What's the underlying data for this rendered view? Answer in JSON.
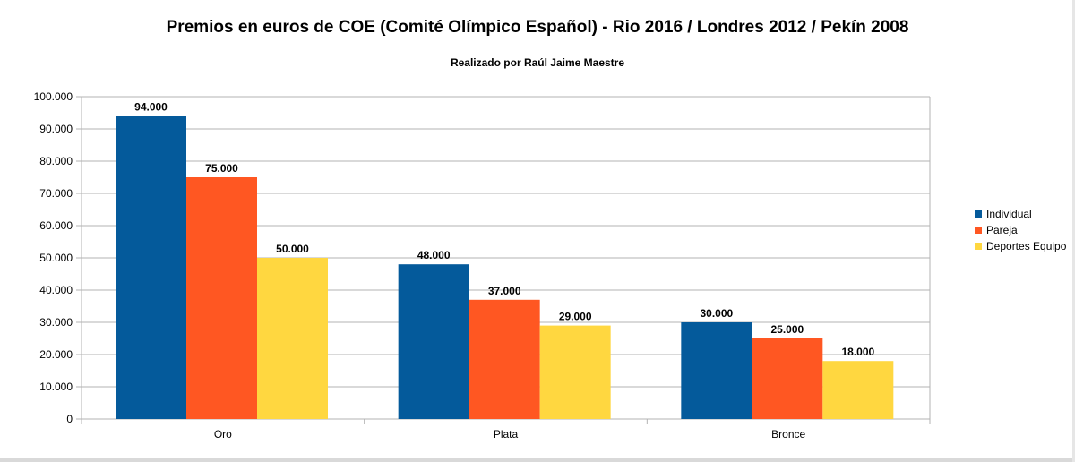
{
  "chart_data": {
    "type": "bar",
    "title": "Premios en euros de COE (Comité Olímpico Español) - Rio 2016 / Londres 2012 / Pekín 2008",
    "subtitle": "Realizado por Raúl Jaime Maestre",
    "categories": [
      "Oro",
      "Plata",
      "Bronce"
    ],
    "series": [
      {
        "name": "Individual",
        "values": [
          94000,
          48000,
          30000
        ],
        "labels": [
          "94.000",
          "48.000",
          "30.000"
        ],
        "color": "#045a9b"
      },
      {
        "name": "Pareja",
        "values": [
          75000,
          37000,
          25000
        ],
        "labels": [
          "75.000",
          "37.000",
          "25.000"
        ],
        "color": "#ff5722"
      },
      {
        "name": "Deportes Equipo",
        "values": [
          50000,
          29000,
          18000
        ],
        "labels": [
          "50.000",
          "29.000",
          "18.000"
        ],
        "color": "#ffd740"
      }
    ],
    "yticks": [
      0,
      10000,
      20000,
      30000,
      40000,
      50000,
      60000,
      70000,
      80000,
      90000,
      100000
    ],
    "ytick_labels": [
      "0",
      "10.000",
      "20.000",
      "30.000",
      "40.000",
      "50.000",
      "60.000",
      "70.000",
      "80.000",
      "90.000",
      "100.000"
    ],
    "ylim": [
      0,
      100000
    ],
    "grid": true,
    "legend_position": "right"
  }
}
